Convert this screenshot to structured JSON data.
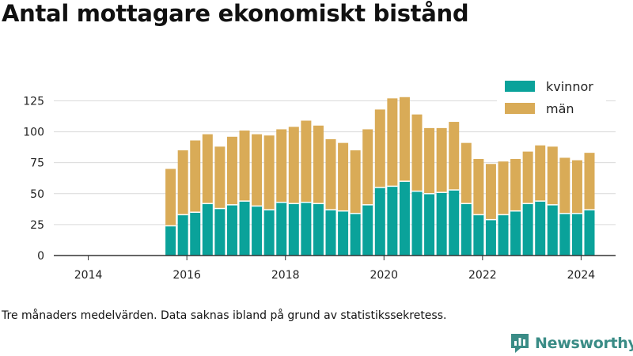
{
  "title": "Antal mottagare ekonomiskt bistånd",
  "footnote": "Tre månaders medelvärden. Data saknas ibland på grund av statistikssekretess.",
  "brand": {
    "name": "Newsworthy",
    "icon": "newsworthy-logo-icon",
    "color": "#3a8c86"
  },
  "colors": {
    "kvinnor": "#0aa29a",
    "man": "#d9ab57",
    "grid": "#d9d9d9",
    "axis": "#333333"
  },
  "chart_data": {
    "type": "bar",
    "stacked": true,
    "xlabel": "",
    "ylabel": "",
    "ylim": [
      0,
      140
    ],
    "yticks": [
      0,
      25,
      50,
      75,
      100,
      125
    ],
    "xlim": [
      2013.3,
      2024.7
    ],
    "xticks": [
      2014,
      2016,
      2018,
      2020,
      2022,
      2024
    ],
    "grid": true,
    "legend_position": "top-right",
    "x": [
      2015.67,
      2015.92,
      2016.17,
      2016.42,
      2016.67,
      2016.92,
      2017.17,
      2017.42,
      2017.67,
      2017.92,
      2018.17,
      2018.42,
      2018.67,
      2018.92,
      2019.17,
      2019.42,
      2019.67,
      2019.92,
      2020.17,
      2020.42,
      2020.67,
      2020.92,
      2021.17,
      2021.42,
      2021.67,
      2021.92,
      2022.17,
      2022.42,
      2022.67,
      2022.92,
      2023.17,
      2023.42,
      2023.67,
      2023.92,
      2024.17
    ],
    "series": [
      {
        "name": "kvinnor",
        "values": [
          24,
          33,
          35,
          42,
          38,
          41,
          44,
          40,
          37,
          43,
          42,
          43,
          42,
          37,
          36,
          34,
          41,
          55,
          56,
          60,
          52,
          50,
          51,
          53,
          42,
          33,
          29,
          33,
          36,
          42,
          44,
          41,
          34,
          34,
          37
        ]
      },
      {
        "name": "män",
        "values": [
          46,
          52,
          58,
          56,
          50,
          55,
          57,
          58,
          60,
          59,
          62,
          66,
          63,
          57,
          55,
          51,
          61,
          63,
          71,
          68,
          62,
          53,
          52,
          55,
          49,
          45,
          45,
          43,
          42,
          42,
          45,
          47,
          45,
          43,
          46
        ]
      }
    ]
  }
}
